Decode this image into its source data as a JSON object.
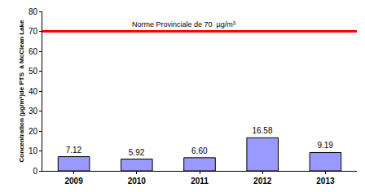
{
  "chart_data": {
    "type": "bar",
    "y_label": "Concentration (µg/m³)de PTS  à McClean Lake",
    "categories": [
      "2009",
      "2010",
      "2011",
      "2012",
      "2013"
    ],
    "values": [
      7.12,
      5.92,
      6.6,
      16.58,
      9.19
    ],
    "value_labels": [
      "7.12",
      "5.92",
      "6.60",
      "16.58",
      "9.19"
    ],
    "data_labels": true,
    "color": "#9999ff",
    "ylim": [
      0,
      80
    ],
    "yticks": [
      0,
      10,
      20,
      30,
      40,
      50,
      60,
      70,
      80
    ],
    "grid": false,
    "threshold": {
      "value": 70,
      "label": "Norme Provinciale de 70  µg/m³",
      "color": "#ff0000"
    }
  }
}
